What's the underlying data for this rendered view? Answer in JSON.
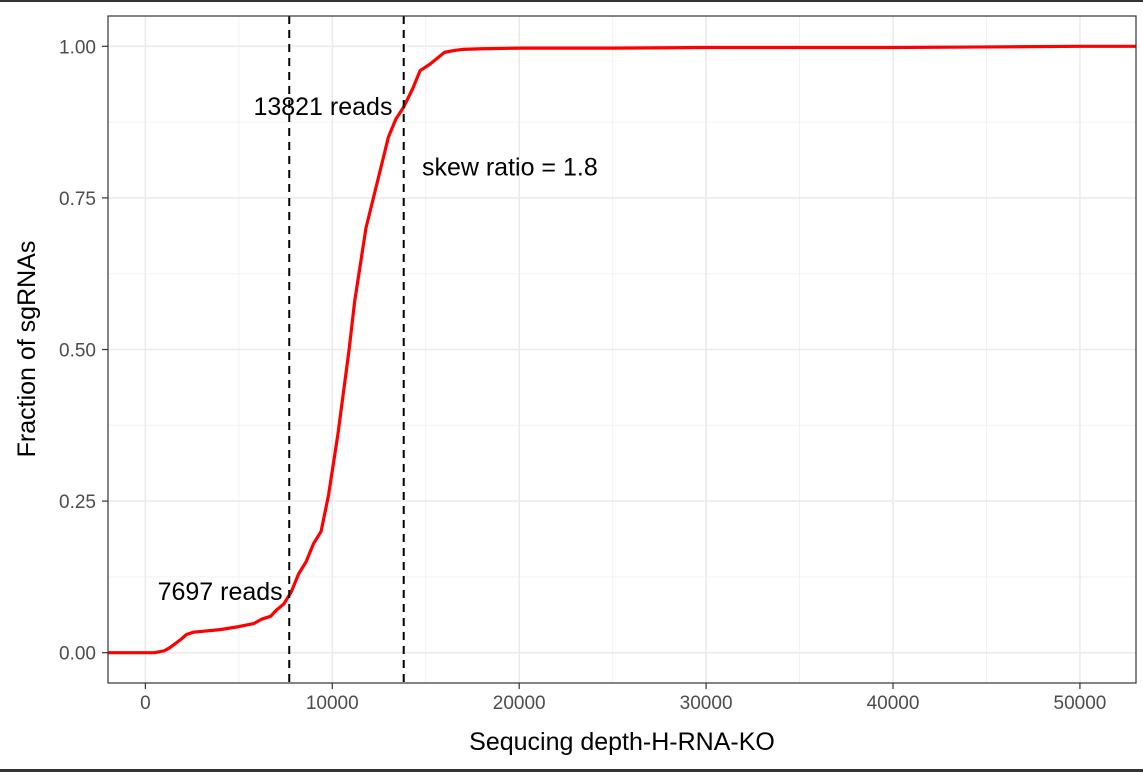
{
  "chart_data": {
    "type": "line",
    "xlabel": "Sequcing depth-H-RNA-KO",
    "ylabel": "Fraction of sgRNAs",
    "xlim": [
      -2000,
      53000
    ],
    "ylim": [
      -0.05,
      1.05
    ],
    "x_ticks": [
      0,
      10000,
      20000,
      30000,
      40000,
      50000
    ],
    "x_tick_labels": [
      "0",
      "10000",
      "20000",
      "30000",
      "40000",
      "50000"
    ],
    "y_ticks": [
      0,
      0.25,
      0.5,
      0.75,
      1.0
    ],
    "y_tick_labels": [
      "0.00",
      "0.25",
      "0.50",
      "0.75",
      "1.00"
    ],
    "grid": true,
    "series": [
      {
        "color": "#ff0000",
        "x": [
          -2000,
          0,
          500,
          1000,
          1300,
          1600,
          1900,
          2200,
          2600,
          3000,
          4000,
          5000,
          5800,
          6200,
          6700,
          7000,
          7400,
          7800,
          8200,
          8600,
          9000,
          9400,
          9800,
          10000,
          10300,
          10600,
          10900,
          11200,
          11500,
          11800,
          12200,
          12600,
          13000,
          13400,
          13821,
          14300,
          14700,
          15200,
          15600,
          16000,
          16500,
          17000,
          18000,
          20000,
          25000,
          30000,
          40000,
          45000,
          50000,
          53000
        ],
        "y": [
          0,
          0,
          0,
          0.003,
          0.008,
          0.015,
          0.022,
          0.03,
          0.034,
          0.035,
          0.038,
          0.043,
          0.048,
          0.055,
          0.06,
          0.07,
          0.08,
          0.1,
          0.13,
          0.15,
          0.18,
          0.2,
          0.26,
          0.3,
          0.36,
          0.43,
          0.5,
          0.58,
          0.64,
          0.7,
          0.75,
          0.8,
          0.85,
          0.88,
          0.9,
          0.93,
          0.96,
          0.97,
          0.98,
          0.99,
          0.993,
          0.995,
          0.996,
          0.997,
          0.997,
          0.998,
          0.998,
          0.999,
          1.0,
          1.0
        ]
      }
    ],
    "vlines": [
      7697,
      13821
    ],
    "annotations": [
      {
        "text": "7697 reads",
        "x": 4000,
        "y": 0.1
      },
      {
        "text": "13821 reads",
        "x": 9500,
        "y": 0.9
      },
      {
        "text": "skew ratio = 1.8",
        "x": 19500,
        "y": 0.8
      }
    ]
  }
}
